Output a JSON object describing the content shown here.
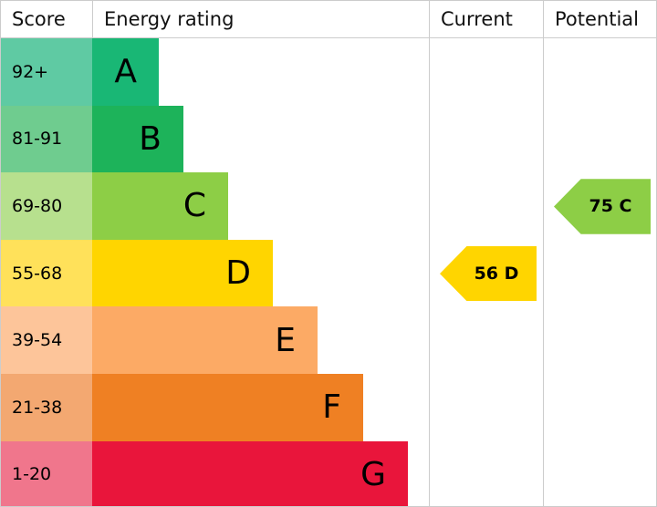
{
  "header": {
    "score": "Score",
    "rating": "Energy rating",
    "current": "Current",
    "potential": "Potential"
  },
  "rows": [
    {
      "score": "92+",
      "letter": "A",
      "score_color": "#5fcaa3",
      "bar_color": "#19b775"
    },
    {
      "score": "81-91",
      "letter": "B",
      "score_color": "#6fcc8f",
      "bar_color": "#1db35a"
    },
    {
      "score": "69-80",
      "letter": "C",
      "score_color": "#b7e08e",
      "bar_color": "#8dce46"
    },
    {
      "score": "55-68",
      "letter": "D",
      "score_color": "#ffe15a",
      "bar_color": "#ffd500"
    },
    {
      "score": "39-54",
      "letter": "E",
      "score_color": "#fdc59a",
      "bar_color": "#fcaa65"
    },
    {
      "score": "21-38",
      "letter": "F",
      "score_color": "#f3a871",
      "bar_color": "#ef8023"
    },
    {
      "score": "1-20",
      "letter": "G",
      "score_color": "#f0768c",
      "bar_color": "#e9153b"
    }
  ],
  "current": {
    "label": "56 D",
    "color": "#ffd500"
  },
  "potential": {
    "label": "75 C",
    "color": "#8dce46"
  }
}
